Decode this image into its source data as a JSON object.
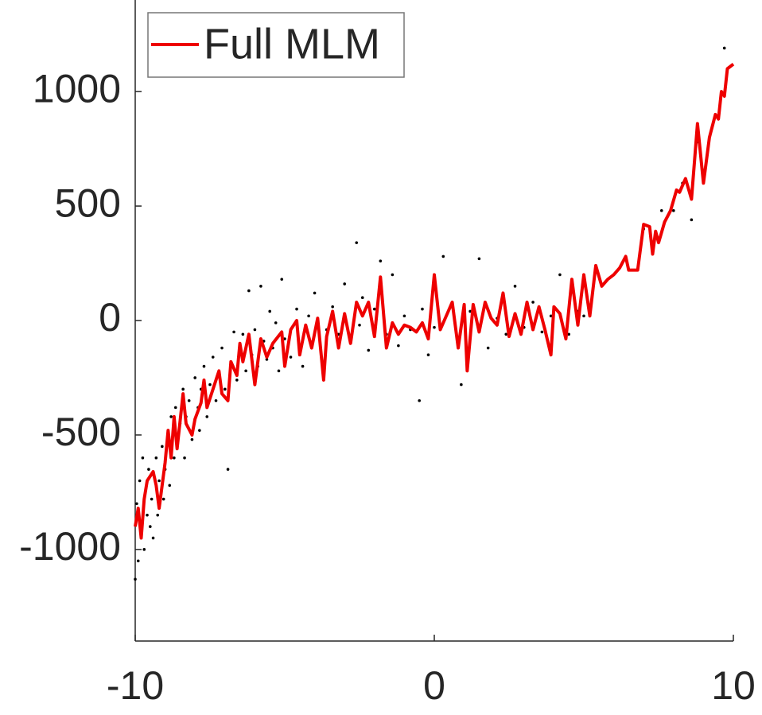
{
  "chart_data": {
    "type": "line",
    "xlim": [
      -10,
      10
    ],
    "ylim": [
      -1400,
      1400
    ],
    "xticks": [
      -10,
      0,
      10
    ],
    "yticks": [
      -1000,
      -500,
      0,
      500,
      1000
    ],
    "legend": "top-left",
    "series": [
      {
        "type": "scatter",
        "color": "#000000",
        "x": [
          -10,
          -9.95,
          -9.9,
          -9.85,
          -9.8,
          -9.75,
          -9.7,
          -9.6,
          -9.55,
          -9.5,
          -9.45,
          -9.4,
          -9.3,
          -9.25,
          -9.2,
          -9.1,
          -9.05,
          -9.0,
          -8.9,
          -8.85,
          -8.8,
          -8.7,
          -8.65,
          -8.6,
          -8.5,
          -8.4,
          -8.35,
          -8.3,
          -8.2,
          -8.1,
          -8.0,
          -7.9,
          -7.85,
          -7.8,
          -7.7,
          -7.6,
          -7.5,
          -7.4,
          -7.3,
          -7.2,
          -7.1,
          -7.0,
          -6.9,
          -6.8,
          -6.7,
          -6.6,
          -6.5,
          -6.4,
          -6.3,
          -6.2,
          -6.1,
          -6.0,
          -5.9,
          -5.8,
          -5.7,
          -5.6,
          -5.5,
          -5.4,
          -5.3,
          -5.2,
          -5.1,
          -5.0,
          -4.8,
          -4.6,
          -4.4,
          -4.2,
          -4.0,
          -3.8,
          -3.6,
          -3.4,
          -3.2,
          -3.0,
          -2.8,
          -2.6,
          -2.5,
          -2.4,
          -2.2,
          -2.0,
          -1.8,
          -1.6,
          -1.4,
          -1.2,
          -1.0,
          -0.8,
          -0.5,
          -0.4,
          -0.2,
          0.0,
          0.3,
          0.6,
          0.9,
          1.2,
          1.5,
          1.8,
          2.1,
          2.4,
          2.7,
          3.0,
          3.3,
          3.6,
          3.9,
          4.2,
          4.5,
          4.8,
          5.0,
          7.0,
          7.3,
          7.6,
          8.0,
          8.3,
          8.6,
          8.8,
          9.3,
          9.6,
          9.7
        ],
        "values": [
          -1130,
          -800,
          -1050,
          -700,
          -950,
          -600,
          -1000,
          -850,
          -650,
          -900,
          -780,
          -950,
          -600,
          -850,
          -700,
          -550,
          -780,
          -650,
          -500,
          -720,
          -420,
          -600,
          -380,
          -520,
          -450,
          -300,
          -600,
          -420,
          -350,
          -520,
          -250,
          -380,
          -480,
          -300,
          -200,
          -420,
          -280,
          -160,
          -350,
          -240,
          -120,
          -300,
          -650,
          -180,
          -50,
          -260,
          -120,
          -60,
          -220,
          130,
          -150,
          -40,
          -200,
          150,
          -90,
          -170,
          40,
          -120,
          -10,
          -220,
          180,
          -80,
          -160,
          50,
          -200,
          20,
          120,
          -120,
          -40,
          60,
          -60,
          160,
          -80,
          340,
          -20,
          100,
          -130,
          50,
          260,
          -60,
          200,
          -110,
          20,
          -40,
          -350,
          50,
          -150,
          -30,
          280,
          60,
          -280,
          40,
          270,
          -120,
          10,
          -60,
          150,
          -30,
          80,
          -50,
          20,
          200,
          -60,
          40,
          20,
          400,
          300,
          480,
          480,
          600,
          440,
          780,
          850,
          1000,
          1190
        ]
      },
      {
        "type": "line",
        "name": "Full MLM",
        "color": "#ee0000",
        "x": [
          -10,
          -9.9,
          -9.8,
          -9.7,
          -9.6,
          -9.4,
          -9.3,
          -9.2,
          -9.0,
          -8.9,
          -8.8,
          -8.7,
          -8.6,
          -8.4,
          -8.3,
          -8.1,
          -8.0,
          -7.8,
          -7.7,
          -7.6,
          -7.4,
          -7.2,
          -7.1,
          -6.9,
          -6.8,
          -6.6,
          -6.5,
          -6.4,
          -6.2,
          -6.0,
          -5.8,
          -5.6,
          -5.4,
          -5.1,
          -5.0,
          -4.8,
          -4.6,
          -4.5,
          -4.3,
          -4.1,
          -3.9,
          -3.7,
          -3.6,
          -3.4,
          -3.2,
          -3.0,
          -2.8,
          -2.6,
          -2.4,
          -2.2,
          -2.0,
          -1.8,
          -1.6,
          -1.4,
          -1.2,
          -1.0,
          -0.8,
          -0.6,
          -0.4,
          -0.2,
          0.0,
          0.2,
          0.4,
          0.6,
          0.8,
          1.0,
          1.1,
          1.3,
          1.5,
          1.7,
          1.9,
          2.1,
          2.3,
          2.5,
          2.7,
          2.9,
          3.1,
          3.3,
          3.5,
          3.7,
          3.9,
          4.0,
          4.2,
          4.4,
          4.6,
          4.8,
          5.0,
          5.2,
          5.4,
          5.6,
          5.8,
          6.0,
          6.2,
          6.4,
          6.5,
          6.8,
          7.0,
          7.2,
          7.3,
          7.4,
          7.5,
          7.7,
          7.9,
          8.1,
          8.2,
          8.4,
          8.6,
          8.8,
          9.0,
          9.2,
          9.4,
          9.5,
          9.6,
          9.7,
          9.8,
          10.0
        ],
        "values": [
          -900,
          -820,
          -950,
          -780,
          -700,
          -660,
          -720,
          -820,
          -620,
          -480,
          -600,
          -420,
          -560,
          -320,
          -450,
          -500,
          -430,
          -360,
          -260,
          -380,
          -300,
          -220,
          -320,
          -350,
          -180,
          -240,
          -100,
          -180,
          -60,
          -280,
          -80,
          -160,
          -100,
          -50,
          -200,
          -40,
          0,
          -150,
          -20,
          -120,
          10,
          -260,
          -70,
          40,
          -120,
          30,
          -100,
          80,
          20,
          80,
          -70,
          190,
          -120,
          -10,
          -60,
          -20,
          -30,
          -50,
          -10,
          -80,
          200,
          -40,
          20,
          80,
          -120,
          70,
          -220,
          70,
          -50,
          80,
          10,
          -20,
          120,
          -70,
          30,
          -60,
          80,
          -40,
          60,
          -40,
          -150,
          60,
          30,
          -80,
          180,
          -20,
          200,
          20,
          240,
          150,
          180,
          200,
          230,
          280,
          220,
          220,
          420,
          410,
          290,
          390,
          340,
          430,
          480,
          570,
          560,
          620,
          530,
          860,
          600,
          800,
          900,
          880,
          1000,
          980,
          1100,
          1120
        ]
      }
    ]
  }
}
